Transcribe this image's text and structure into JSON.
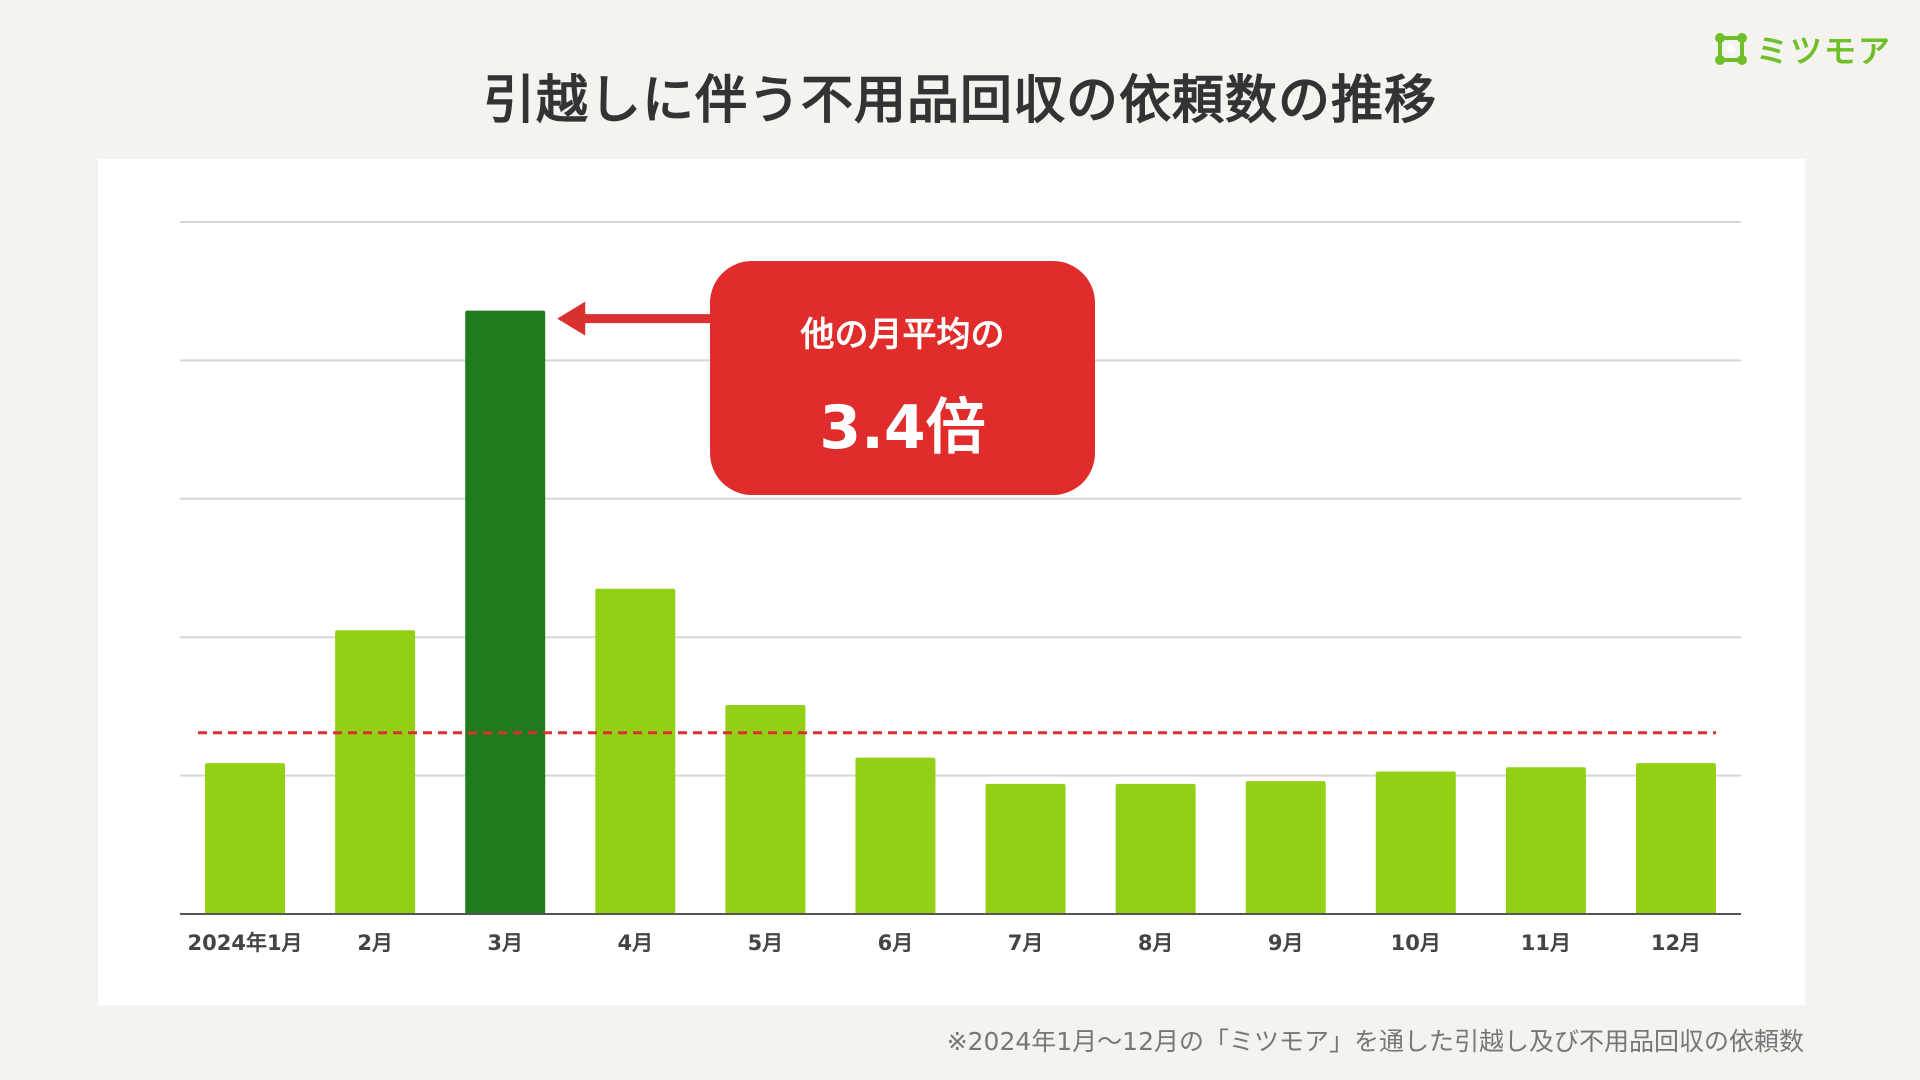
{
  "logo": {
    "icon": "mitsumore-logo-icon",
    "text": "ミツモア",
    "color": "#6fbf2a"
  },
  "title": "引越しに伴う不用品回収の依頼数の推移",
  "callout": {
    "line1": "他の月平均の",
    "line2": "3.4倍",
    "color": "#e12c2c"
  },
  "footnote": "※2024年1月〜12月の「ミツモア」を通した引越し及び不用品回収の依頼数",
  "chart_data": {
    "type": "bar",
    "categories": [
      "2024年1月",
      "2月",
      "3月",
      "4月",
      "5月",
      "6月",
      "7月",
      "8月",
      "9月",
      "10月",
      "11月",
      "12月"
    ],
    "values": [
      1.09,
      2.05,
      4.36,
      2.35,
      1.51,
      1.13,
      0.94,
      0.94,
      0.96,
      1.03,
      1.06,
      1.09
    ],
    "highlight_index": 2,
    "bar_color": "#93cf15",
    "highlight_color": "#1e7b1e",
    "reference_line": {
      "value": 1.31,
      "style": "dashed",
      "color": "#d93030"
    },
    "ylim": [
      0,
      5
    ],
    "gridlines": [
      1,
      2,
      3,
      4,
      5
    ],
    "grid": true,
    "legend": false
  }
}
